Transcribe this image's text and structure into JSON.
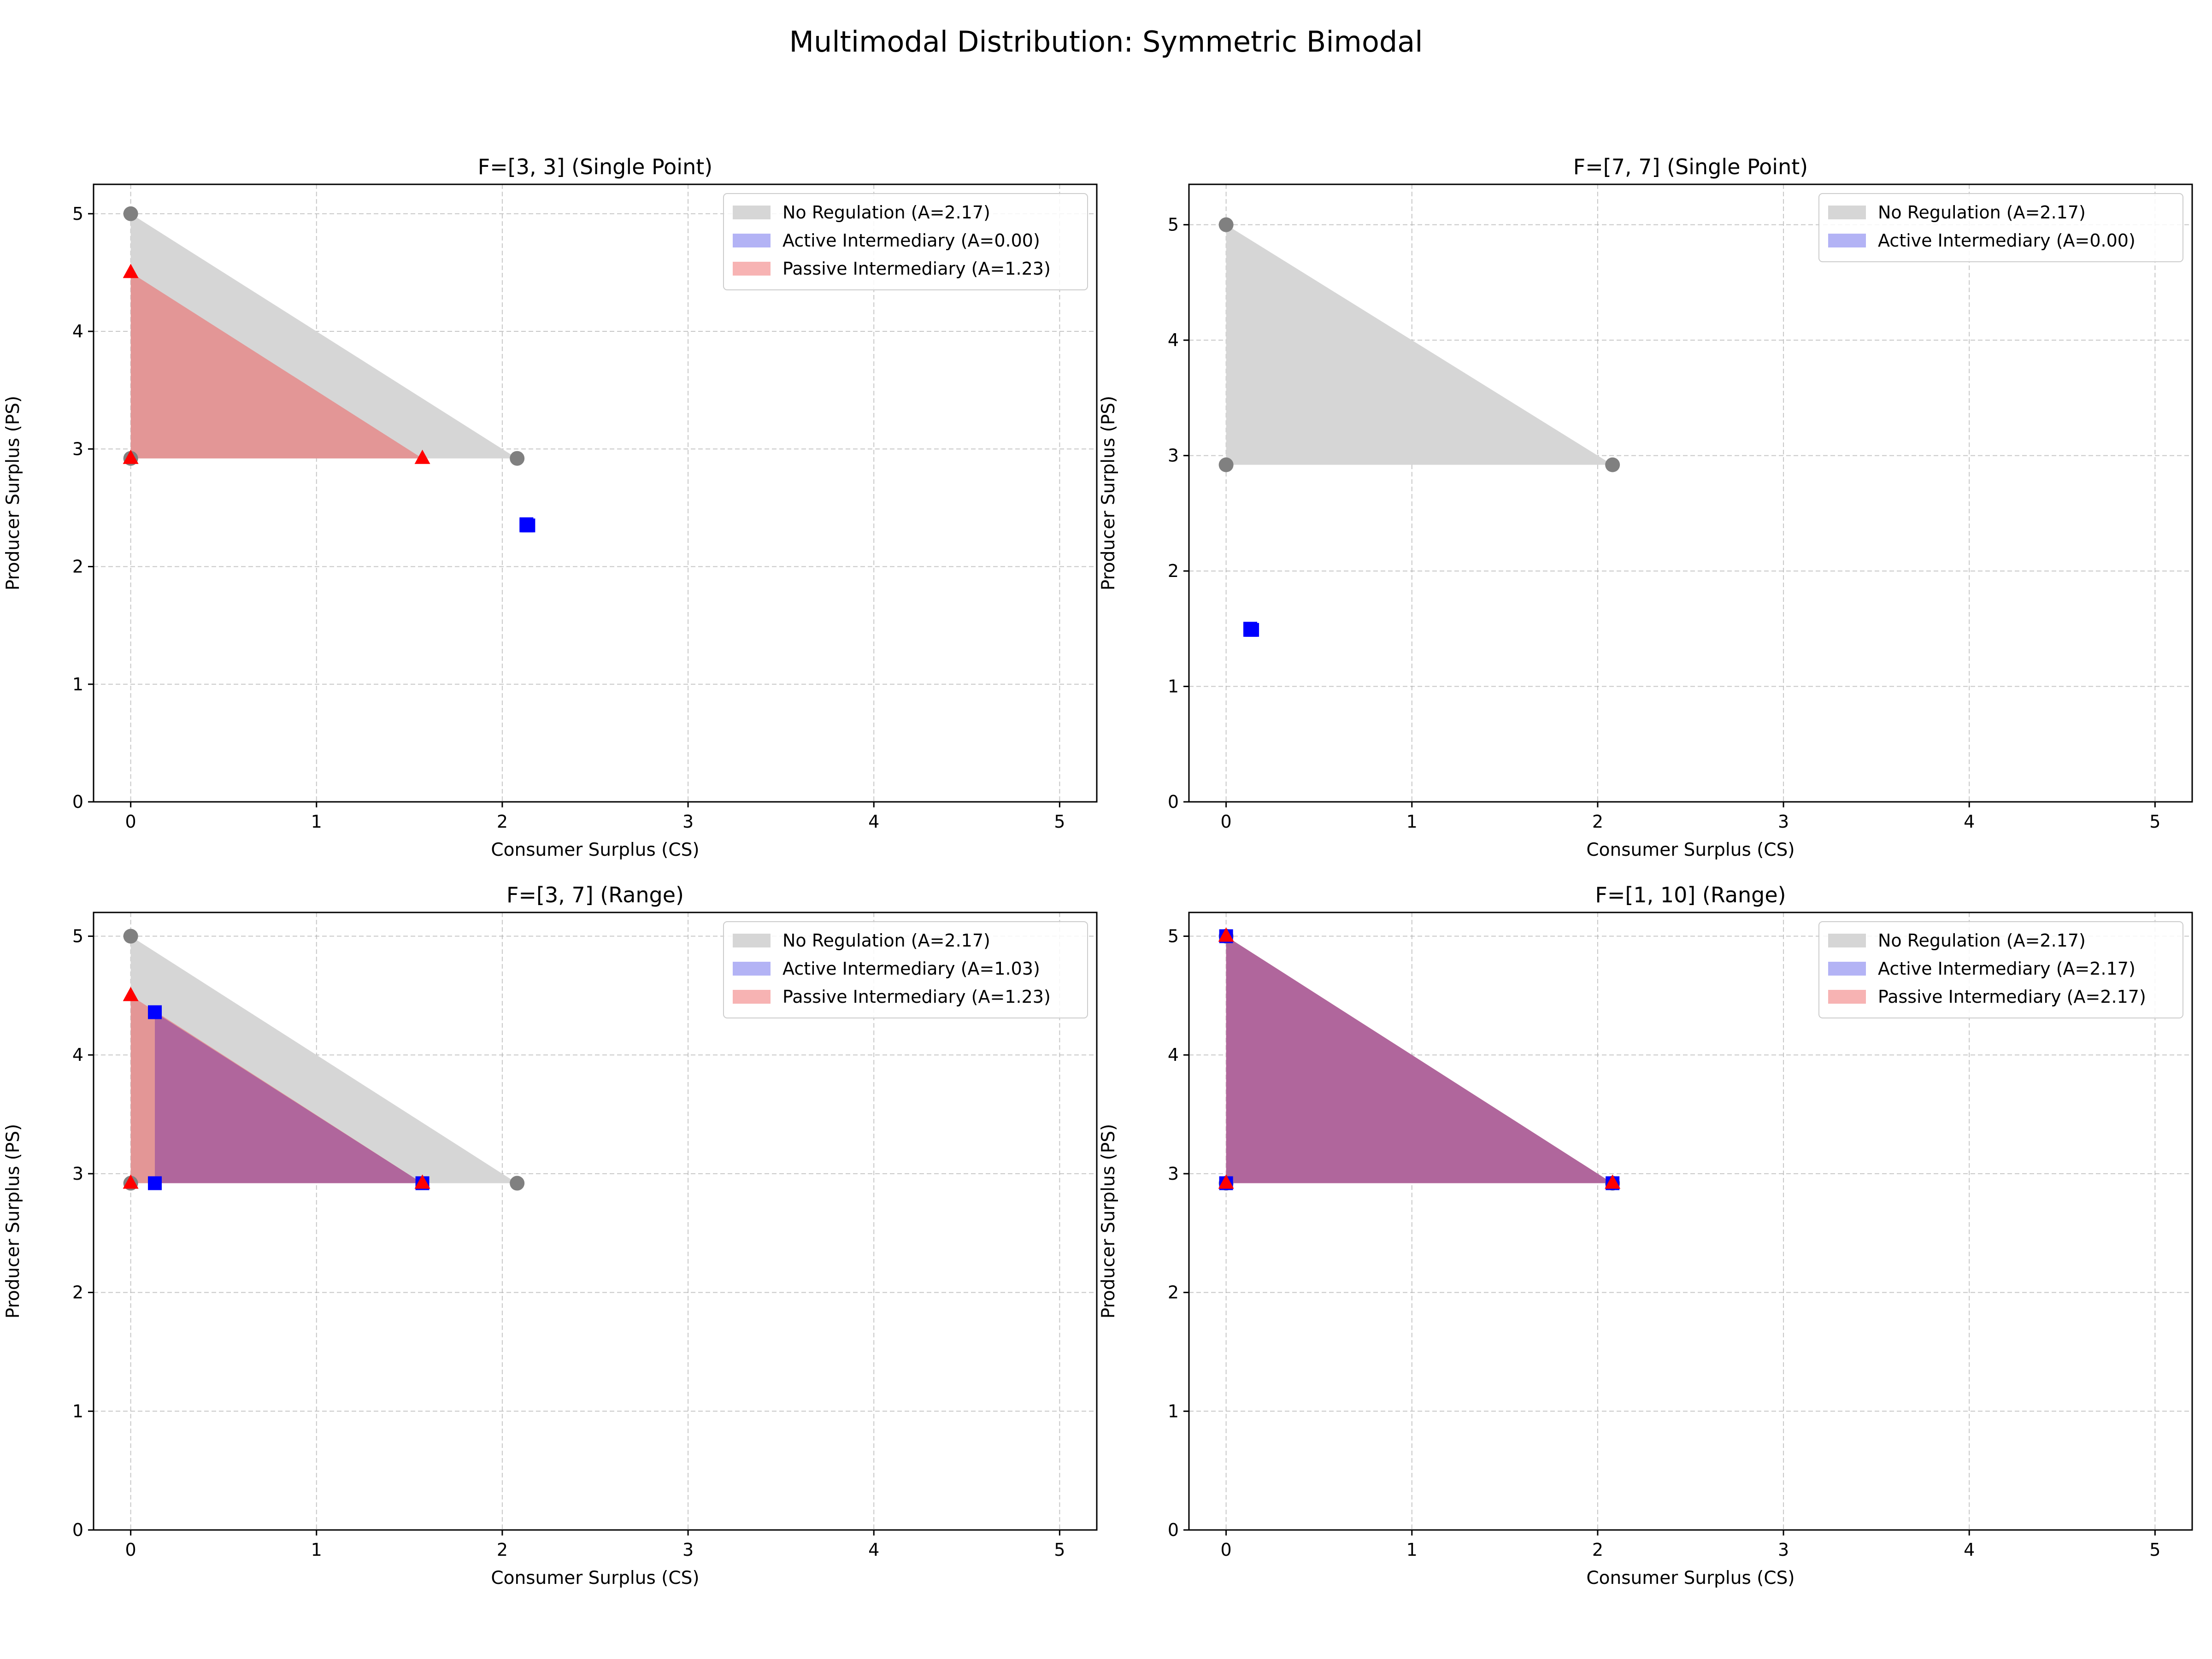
{
  "figure": {
    "title": "Multimodal Distribution: Symmetric Bimodal"
  },
  "colors": {
    "no_regulation_fill": "#d6d6d6",
    "active_fill": "#b3b3f5",
    "passive_fill": "#f7b3b3",
    "overlap_fill": "#b0669c",
    "grid": "#b0b0b0",
    "no_regulation_marker": "#808080",
    "active_marker": "#0000ff",
    "passive_marker": "#ff0000"
  },
  "chart_data": [
    {
      "type": "area",
      "title": "F=[3, 3] (Single Point)",
      "xlabel": "Consumer Surplus (CS)",
      "ylabel": "Producer Surplus (PS)",
      "xlim": [
        -0.2,
        5.2
      ],
      "ylim": [
        0,
        5.25
      ],
      "xticks": [
        0,
        1,
        2,
        3,
        4,
        5
      ],
      "yticks": [
        0,
        1,
        2,
        3,
        4,
        5
      ],
      "grid": true,
      "legend_position": "top-right",
      "series": [
        {
          "name": "No Regulation (A=2.17)",
          "key": "none",
          "polygon": [
            [
              0,
              5.0
            ],
            [
              0,
              2.92
            ],
            [
              2.08,
              2.92
            ]
          ]
        },
        {
          "name": "Active Intermediary (A=0.00)",
          "key": "active",
          "polygon": [
            [
              2.13,
              2.35
            ],
            [
              2.14,
              2.35
            ],
            [
              2.13,
              2.36
            ]
          ]
        },
        {
          "name": "Passive Intermediary (A=1.23)",
          "key": "passive",
          "polygon": [
            [
              0,
              4.5
            ],
            [
              0,
              2.92
            ],
            [
              1.57,
              2.92
            ]
          ]
        }
      ]
    },
    {
      "type": "area",
      "title": "F=[7, 7] (Single Point)",
      "xlabel": "Consumer Surplus (CS)",
      "ylabel": "Producer Surplus (PS)",
      "xlim": [
        -0.2,
        5.2
      ],
      "ylim": [
        0,
        5.35
      ],
      "xticks": [
        0,
        1,
        2,
        3,
        4,
        5
      ],
      "yticks": [
        0,
        1,
        2,
        3,
        4,
        5
      ],
      "grid": true,
      "legend_position": "top-right",
      "series": [
        {
          "name": "No Regulation (A=2.17)",
          "key": "none",
          "polygon": [
            [
              0,
              5.0
            ],
            [
              0,
              2.92
            ],
            [
              2.08,
              2.92
            ]
          ]
        },
        {
          "name": "Active Intermediary (A=0.00)",
          "key": "active",
          "polygon": [
            [
              0.13,
              1.49
            ],
            [
              0.14,
              1.49
            ],
            [
              0.13,
              1.5
            ]
          ]
        }
      ]
    },
    {
      "type": "area",
      "title": "F=[3, 7] (Range)",
      "xlabel": "Consumer Surplus (CS)",
      "ylabel": "Producer Surplus (PS)",
      "xlim": [
        -0.2,
        5.2
      ],
      "ylim": [
        0,
        5.2
      ],
      "xticks": [
        0,
        1,
        2,
        3,
        4,
        5
      ],
      "yticks": [
        0,
        1,
        2,
        3,
        4,
        5
      ],
      "grid": true,
      "legend_position": "top-right",
      "series": [
        {
          "name": "No Regulation (A=2.17)",
          "key": "none",
          "polygon": [
            [
              0,
              5.0
            ],
            [
              0,
              2.92
            ],
            [
              2.08,
              2.92
            ]
          ]
        },
        {
          "name": "Active Intermediary (A=1.03)",
          "key": "active",
          "polygon": [
            [
              0.13,
              4.36
            ],
            [
              0.13,
              2.92
            ],
            [
              1.57,
              2.92
            ]
          ]
        },
        {
          "name": "Passive Intermediary (A=1.23)",
          "key": "passive",
          "polygon": [
            [
              0,
              4.5
            ],
            [
              0,
              2.92
            ],
            [
              1.57,
              2.92
            ]
          ]
        }
      ]
    },
    {
      "type": "area",
      "title": "F=[1, 10] (Range)",
      "xlabel": "Consumer Surplus (CS)",
      "ylabel": "Producer Surplus (PS)",
      "xlim": [
        -0.2,
        5.2
      ],
      "ylim": [
        0,
        5.2
      ],
      "xticks": [
        0,
        1,
        2,
        3,
        4,
        5
      ],
      "yticks": [
        0,
        1,
        2,
        3,
        4,
        5
      ],
      "grid": true,
      "legend_position": "top-right",
      "series": [
        {
          "name": "No Regulation (A=2.17)",
          "key": "none",
          "polygon": [
            [
              0,
              5.0
            ],
            [
              0,
              2.92
            ],
            [
              2.08,
              2.92
            ]
          ]
        },
        {
          "name": "Active Intermediary (A=2.17)",
          "key": "active",
          "polygon": [
            [
              0,
              5.0
            ],
            [
              0,
              2.92
            ],
            [
              2.08,
              2.92
            ]
          ]
        },
        {
          "name": "Passive Intermediary (A=2.17)",
          "key": "passive",
          "polygon": [
            [
              0,
              5.0
            ],
            [
              0,
              2.92
            ],
            [
              2.08,
              2.92
            ]
          ]
        }
      ]
    }
  ]
}
